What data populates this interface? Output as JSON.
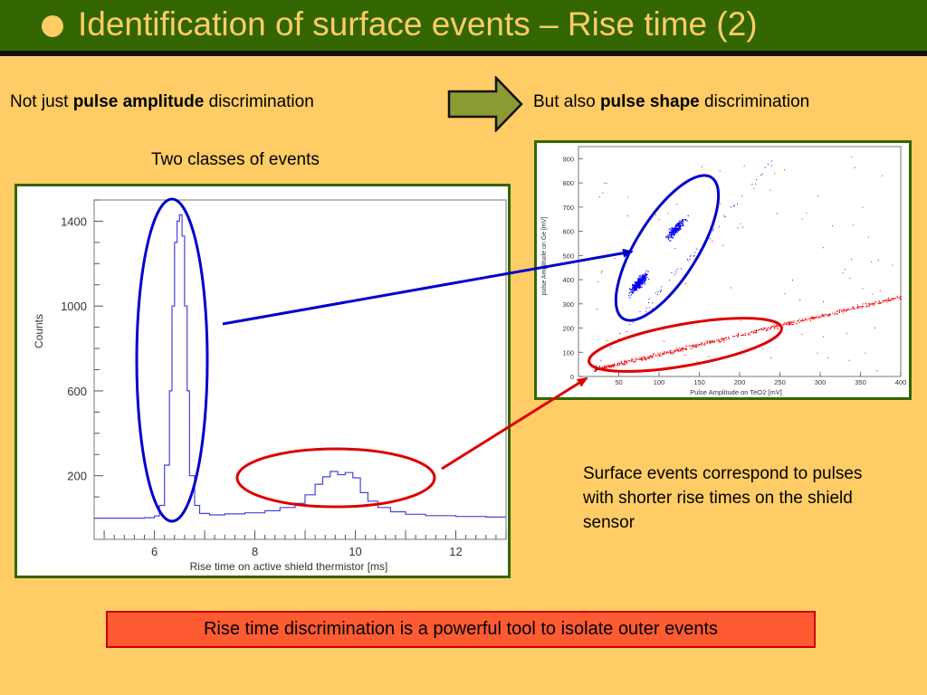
{
  "slide": {
    "title": "Identification of surface events – Rise time (2)",
    "line1_prefix": "Not just ",
    "line1_bold": "pulse amplitude",
    "line1_suffix": " discrimination",
    "line2_prefix": "But also ",
    "line2_bold": "pulse shape",
    "line2_suffix": " discrimination",
    "two_classes": "Two classes of events",
    "note": "Surface events correspond to pulses with shorter rise times on the shield sensor",
    "conclusion": "Rise time discrimination is a powerful tool to isolate outer events"
  },
  "colors": {
    "background": "#FFCC66",
    "title_bar": "#336600",
    "title_text": "#FFCC66",
    "arrow_fill": "#8C9A33",
    "panel_border": "#336600",
    "blue_highlight": "#0000CC",
    "red_highlight": "#DD0000",
    "conclusion_fill": "#FF5B33"
  },
  "chart_data": [
    {
      "type": "bar",
      "style": "step histogram",
      "xlabel": "Rise time on active shield thermistor  [ms]",
      "ylabel": "Counts",
      "xlim": [
        4.8,
        13
      ],
      "ylim": [
        -100,
        1500
      ],
      "xticks": [
        "6",
        "8",
        "10",
        "12"
      ],
      "yticks": [
        "200",
        "600",
        "1000",
        "1400"
      ],
      "x": [
        5.6,
        5.8,
        6.0,
        6.1,
        6.2,
        6.3,
        6.35,
        6.4,
        6.45,
        6.5,
        6.55,
        6.6,
        6.65,
        6.7,
        6.8,
        6.9,
        7.1,
        7.4,
        7.8,
        8.2,
        8.5,
        8.8,
        9.0,
        9.2,
        9.35,
        9.5,
        9.65,
        9.8,
        9.95,
        10.1,
        10.25,
        10.45,
        10.7,
        11.0,
        11.4,
        12.0,
        12.6
      ],
      "values": [
        0,
        2,
        10,
        60,
        250,
        600,
        1000,
        1300,
        1400,
        1430,
        1330,
        1000,
        600,
        200,
        60,
        22,
        15,
        20,
        25,
        35,
        50,
        70,
        110,
        160,
        195,
        220,
        205,
        215,
        190,
        120,
        80,
        50,
        30,
        18,
        12,
        8,
        5
      ],
      "series": [
        {
          "name": "",
          "color": "#4444DD"
        }
      ]
    },
    {
      "type": "scatter",
      "xlabel": "Pulse Amplitude on TeO2 [mV]",
      "ylabel": "pulse Amplitude on Ge [mV]",
      "xlim": [
        0,
        400
      ],
      "ylim": [
        0,
        950
      ],
      "xticks": [
        "50",
        "100",
        "150",
        "200",
        "250",
        "300",
        "350",
        "400"
      ],
      "yticks": [
        "0",
        "100",
        "200",
        "300",
        "400",
        "500",
        "600",
        "700",
        "800",
        "900"
      ],
      "series": [
        {
          "name": "",
          "color": "#0000EE",
          "clusters": [
            {
              "x": 75,
              "y": 390,
              "n": 320
            },
            {
              "x": 120,
              "y": 610,
              "n": 220
            }
          ]
        },
        {
          "name": "",
          "color": "#EE0000",
          "band": {
            "x0": 20,
            "y0": 30,
            "x1": 400,
            "y1": 330,
            "n": 650
          }
        }
      ]
    }
  ]
}
